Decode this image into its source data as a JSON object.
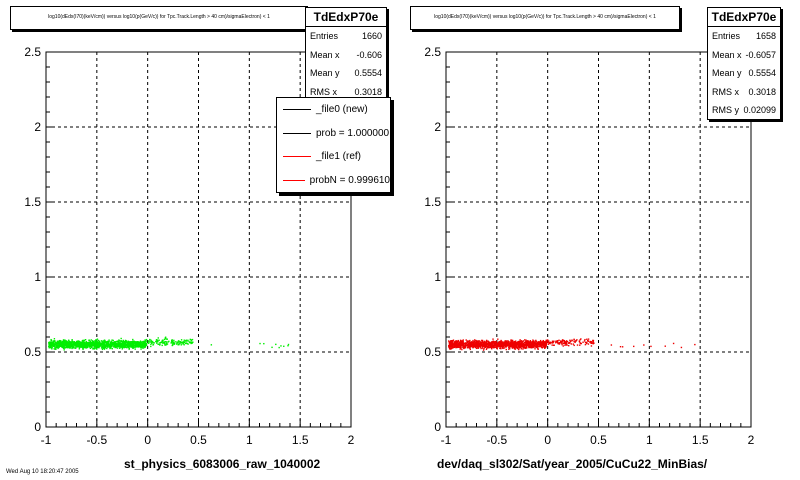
{
  "chart_data": [
    {
      "type": "scatter",
      "title": "log10(dEdx(I70)(keV/cm)) versus log10(p(GeV/c)) for Tpc.Track.Length > 40 cm)/sigmaElectron) < 1",
      "xlabel": "st_physics_6083006_raw_1040002",
      "ylabel": "",
      "xlim": [
        -1,
        2
      ],
      "ylim": [
        0,
        2.5
      ],
      "x_ticks": [
        "-1",
        "-0.5",
        "0",
        "0.5",
        "1",
        "1.5",
        "2"
      ],
      "y_ticks": [
        "0",
        "0.5",
        "1",
        "1.5",
        "2",
        "2.5"
      ],
      "grid": true,
      "marker_color": "#00ee00",
      "series": [
        {
          "color": "#00ee00",
          "clusters": [
            {
              "x": [
                -0.98,
                -0.02
              ],
              "y": [
                0.51,
                0.6
              ],
              "density": "dense"
            },
            {
              "x": [
                -0.02,
                0.45
              ],
              "y": [
                0.53,
                0.61
              ],
              "density": "sparse"
            },
            {
              "x": [
                0.6,
                1.45
              ],
              "y": [
                0.52,
                0.58
              ],
              "density": "very sparse"
            }
          ]
        }
      ],
      "stats": {
        "name": "TdEdxP70e",
        "rows": [
          {
            "label": "Entries",
            "value": "1660"
          },
          {
            "label": "Mean x",
            "value": "-0.606"
          },
          {
            "label": "Mean y",
            "value": "0.5554"
          },
          {
            "label": "RMS x",
            "value": "0.3018"
          }
        ]
      },
      "legend": [
        {
          "label": "_file0 (new)",
          "color": "#000000"
        },
        {
          "label": "prob = 1.000000",
          "color": "#000000"
        },
        {
          "label": "_file1 (ref)",
          "color": "#ff0000"
        },
        {
          "label": "probN = 0.999610",
          "color": "#ff0000"
        }
      ]
    },
    {
      "type": "scatter",
      "title": "log10(dEdx(I70)(keV/cm)) versus log10(p(GeV/c)) for Tpc.Track.Length > 40 cm)/sigmaElectron) < 1",
      "xlabel": "dev/daq_sl302/Sat/year_2005/CuCu22_MinBias/",
      "ylabel": "",
      "xlim": [
        -1,
        2
      ],
      "ylim": [
        0,
        2.5
      ],
      "x_ticks": [
        "-1",
        "-0.5",
        "0",
        "0.5",
        "1",
        "1.5",
        "2"
      ],
      "y_ticks": [
        "0",
        "0.5",
        "1",
        "1.5",
        "2",
        "2.5"
      ],
      "grid": true,
      "marker_color": "#ee0000",
      "series": [
        {
          "color": "#ee0000",
          "clusters": [
            {
              "x": [
                -0.98,
                -0.02
              ],
              "y": [
                0.51,
                0.6
              ],
              "density": "dense"
            },
            {
              "x": [
                -0.02,
                0.45
              ],
              "y": [
                0.53,
                0.61
              ],
              "density": "sparse"
            },
            {
              "x": [
                0.6,
                1.45
              ],
              "y": [
                0.52,
                0.58
              ],
              "density": "very sparse"
            }
          ]
        }
      ],
      "stats": {
        "name": "TdEdxP70e",
        "rows": [
          {
            "label": "Entries",
            "value": "1658"
          },
          {
            "label": "Mean x",
            "value": "-0.6057"
          },
          {
            "label": "Mean y",
            "value": "0.5554"
          },
          {
            "label": "RMS x",
            "value": "0.3018"
          },
          {
            "label": "RMS y",
            "value": "0.02099"
          }
        ]
      }
    }
  ],
  "footer": "Wed Aug 10 18:20:47 2005"
}
